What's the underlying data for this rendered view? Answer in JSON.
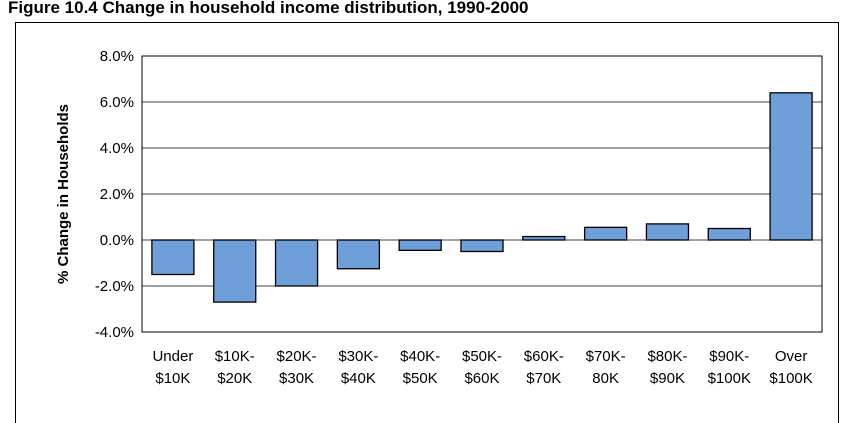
{
  "chart_data": {
    "type": "bar",
    "title": "Figure 10.4 Change in household income distribution, 1990-2000",
    "y_label": "% Change in Households",
    "categories": [
      "Under $10K",
      "$10K- $20K",
      "$20K- $30K",
      "$30K- $40K",
      "$40K- $50K",
      "$50K- $60K",
      "$60K- $70K",
      "$70K- 80K",
      "$80K- $90K",
      "$90K- $100K",
      "Over $100K"
    ],
    "values": [
      -1.5,
      -2.7,
      -2.0,
      -1.25,
      -0.45,
      -0.5,
      0.15,
      0.55,
      0.7,
      0.5,
      6.4
    ],
    "color": "#6f9fd8",
    "ylim": [
      -4,
      8
    ],
    "yticks": [
      {
        "value": -4,
        "label": "-4.0%"
      },
      {
        "value": -2,
        "label": "-2.0%"
      },
      {
        "value": 0,
        "label": "0.0%"
      },
      {
        "value": 2,
        "label": "2.0%"
      },
      {
        "value": 4,
        "label": "4.0%"
      },
      {
        "value": 6,
        "label": "6.0%"
      },
      {
        "value": 8,
        "label": "8.0%"
      }
    ],
    "grid": true
  }
}
